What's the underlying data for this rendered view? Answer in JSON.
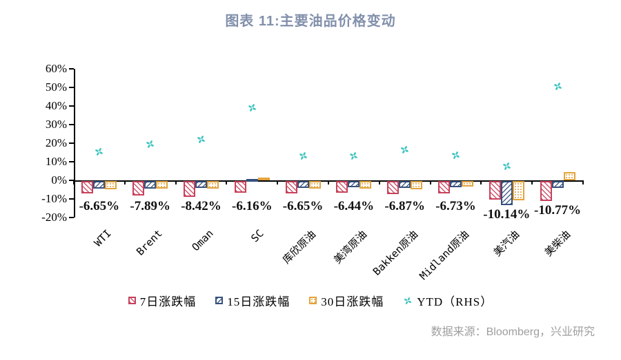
{
  "title": "图表 11:主要油品价格变动",
  "source": "数据来源：Bloomberg，兴业研究",
  "colors": {
    "title_text": "#8290AB",
    "source_text": "#9E9E9E",
    "axis": "#000000",
    "series_7d": "#C8415B",
    "series_15d": "#35507D",
    "series_30d": "#E2A33C",
    "ytd_marker": "#3EC4C0"
  },
  "chart_data": {
    "type": "bar",
    "title": "图表 11:主要油品价格变动",
    "xlabel": "",
    "ylabel": "",
    "ylim": [
      -20,
      60
    ],
    "grid": false,
    "legend_position": "bottom",
    "y_ticks": [
      {
        "label": "60%",
        "value": 60
      },
      {
        "label": "50%",
        "value": 50
      },
      {
        "label": "40%",
        "value": 40
      },
      {
        "label": "30%",
        "value": 30
      },
      {
        "label": "20%",
        "value": 20
      },
      {
        "label": "10%",
        "value": 10
      },
      {
        "label": "0%",
        "value": 0
      },
      {
        "label": "-10%",
        "value": -10
      },
      {
        "label": "-20%",
        "value": -20
      }
    ],
    "categories": [
      "WTI",
      "Brent",
      "Oman",
      "SC",
      "库欣原油",
      "美湾原油",
      "Bakken原油",
      "Midland原油",
      "美汽油",
      "美柴油"
    ],
    "series": [
      {
        "name": "7日涨跌幅",
        "type": "bar",
        "style": "red-hatch",
        "values": [
          -6.65,
          -7.89,
          -8.42,
          -6.16,
          -6.65,
          -6.44,
          -6.87,
          -6.73,
          -10.14,
          -10.77
        ]
      },
      {
        "name": "15日涨跌幅",
        "type": "bar",
        "style": "blue-hatch",
        "values": [
          -4.0,
          -4.0,
          -3.6,
          0.5,
          -3.6,
          -3.5,
          -3.8,
          -3.4,
          -12.8,
          -3.8
        ]
      },
      {
        "name": "30日涨跌幅",
        "type": "bar",
        "style": "yellow-hatch",
        "values": [
          -4.3,
          -4.2,
          -4.0,
          1.5,
          -4.0,
          -4.2,
          -4.3,
          -3.0,
          -10.5,
          4.4
        ]
      },
      {
        "name": "YTD（RHS）",
        "type": "scatter",
        "style": "cyan-pinwheel",
        "values": [
          15.5,
          19.5,
          22,
          39,
          13,
          13,
          16.5,
          13.5,
          7.5,
          50.5
        ]
      }
    ],
    "bar_labels": [
      "-6.65%",
      "-7.89%",
      "-8.42%",
      "-6.16%",
      "-6.65%",
      "-6.44%",
      "-6.87%",
      "-6.73%",
      "-10.14%",
      "-10.77%"
    ]
  }
}
